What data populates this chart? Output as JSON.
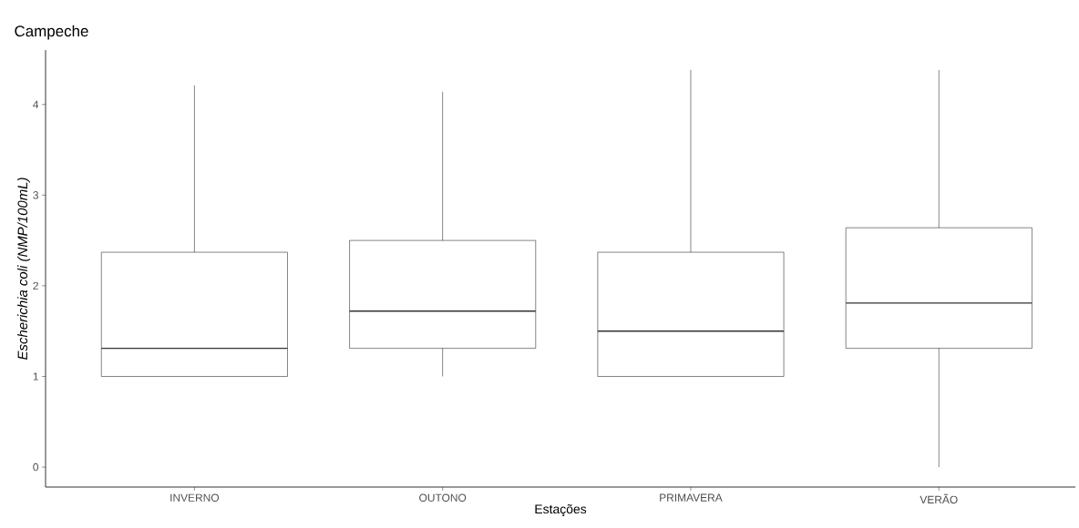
{
  "chart_data": {
    "type": "box",
    "title": "Campeche",
    "xlabel": "Estações",
    "ylabel": "Escherichia coli (NMP/100mL)",
    "categories": [
      "INVERNO",
      "OUTONO",
      "PRIMAVERA",
      "VERÃO"
    ],
    "color": "#333333",
    "boxes": [
      {
        "low": 1.0,
        "q1": 1.0,
        "median": 1.31,
        "q3": 2.37,
        "high": 4.21
      },
      {
        "low": 1.0,
        "q1": 1.31,
        "median": 1.72,
        "q3": 2.5,
        "high": 4.14
      },
      {
        "low": 1.0,
        "q1": 1.0,
        "median": 1.5,
        "q3": 2.37,
        "high": 4.38
      },
      {
        "low": 0.0,
        "q1": 1.31,
        "median": 1.81,
        "q3": 2.64,
        "high": 4.38
      }
    ],
    "ylim": [
      -0.22,
      4.6
    ],
    "yticks": [
      0,
      1,
      2,
      3,
      4
    ]
  }
}
